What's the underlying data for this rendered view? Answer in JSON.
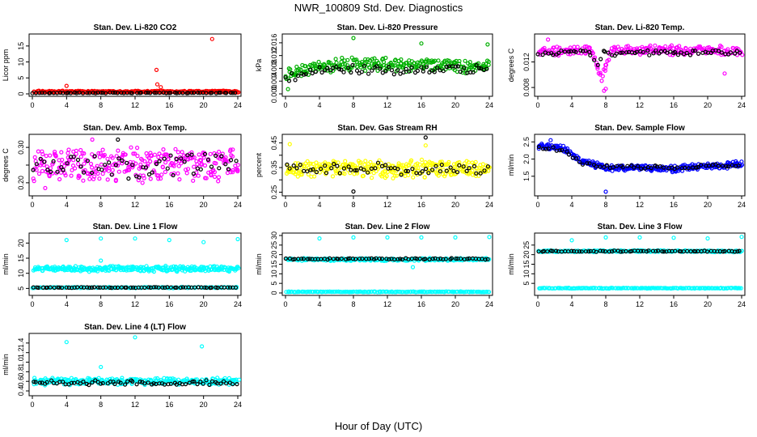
{
  "figure": {
    "title": "NWR_100809  Std. Dev. Diagnostics",
    "xlabel": "Hour of Day (UTC)"
  },
  "chart_data": [
    {
      "type": "scatter",
      "title": "Stan. Dev. Li-820 CO2",
      "ylabel": "Licor ppm",
      "xlim": [
        0,
        24
      ],
      "ylim": [
        0,
        18
      ],
      "xticks": [
        0,
        4,
        8,
        12,
        16,
        20,
        24
      ],
      "yticks": [
        0,
        5,
        10,
        15
      ],
      "ytick_labels": [
        "0",
        "5",
        "10",
        "15"
      ],
      "color": "#ff0000",
      "series": [
        {
          "name": "all",
          "color": "#ff0000",
          "base": 0.7,
          "spread": 0.5,
          "n": 260,
          "outliers": [
            [
              21.0,
              17.2
            ],
            [
              14.5,
              7.5
            ],
            [
              14.6,
              3.0
            ],
            [
              15.0,
              2.1
            ],
            [
              4.0,
              2.5
            ]
          ]
        },
        {
          "name": "hourly",
          "color": "#000000",
          "base": 0.3,
          "spread": 0.2,
          "n": 70
        }
      ]
    },
    {
      "type": "scatter",
      "title": "Stan. Dev. Li-820 Pressure",
      "ylabel": "kPa",
      "xlim": [
        0,
        24
      ],
      "ylim": [
        0,
        0.018
      ],
      "xticks": [
        0,
        4,
        8,
        12,
        16,
        20,
        24
      ],
      "yticks": [
        0.0,
        0.004,
        0.008,
        0.012,
        0.016
      ],
      "ytick_labels": [
        "0.000",
        "0.004",
        "0.008",
        "0.012",
        "0.016"
      ],
      "color": "#00b000",
      "series": [
        {
          "name": "all",
          "color": "#00b000",
          "base": 0.0085,
          "spread": 0.0035,
          "n": 260,
          "trend": [
            [
              0,
              0.0055
            ],
            [
              4,
              0.0085
            ],
            [
              8,
              0.0095
            ],
            [
              24,
              0.0085
            ]
          ],
          "outliers": [
            [
              8.0,
              0.0175
            ],
            [
              23.8,
              0.0155
            ],
            [
              0.3,
              0.0015
            ],
            [
              16.0,
              0.0158
            ]
          ]
        },
        {
          "name": "hourly",
          "color": "#000000",
          "base": 0.0075,
          "spread": 0.0025,
          "n": 70,
          "trend": [
            [
              0,
              0.005
            ],
            [
              4,
              0.0075
            ],
            [
              24,
              0.0078
            ]
          ]
        }
      ]
    },
    {
      "type": "scatter",
      "title": "Stan. Dev. Li-820 Temp.",
      "ylabel": "degrees C",
      "xlim": [
        0,
        24
      ],
      "ylim": [
        0.007,
        0.016
      ],
      "xticks": [
        0,
        4,
        8,
        12,
        16,
        20,
        24
      ],
      "yticks": [
        0.008,
        0.012
      ],
      "ytick_labels": [
        "0.008",
        "0.012"
      ],
      "color": "#ff00ff",
      "series": [
        {
          "name": "all",
          "color": "#ff00ff",
          "base": 0.0138,
          "spread": 0.0012,
          "n": 240,
          "dip": [
            7.5,
            0.0095,
            1.2
          ],
          "outliers": [
            [
              1.2,
              0.0155
            ],
            [
              7.8,
              0.0075
            ],
            [
              8.0,
              0.0078
            ],
            [
              22.0,
              0.0102
            ]
          ]
        },
        {
          "name": "hourly",
          "color": "#000000",
          "base": 0.0135,
          "spread": 0.0008,
          "n": 70,
          "dip": [
            7.0,
            0.011,
            0.8
          ]
        }
      ]
    },
    {
      "type": "scatter",
      "title": "Stan. Dev. Amb. Box Temp.",
      "ylabel": "degrees C",
      "xlim": [
        0,
        24
      ],
      "ylim": [
        0.17,
        0.33
      ],
      "xticks": [
        0,
        4,
        8,
        12,
        16,
        20,
        24
      ],
      "yticks": [
        0.2,
        0.25,
        0.3
      ],
      "ytick_labels": [
        "0.20",
        "",
        "0.30"
      ],
      "color": "#ff00ff",
      "series": [
        {
          "name": "all",
          "color": "#ff00ff",
          "base": 0.25,
          "spread": 0.075,
          "n": 300,
          "outliers": [
            [
              1.5,
              0.185
            ],
            [
              7.0,
              0.322
            ]
          ]
        },
        {
          "name": "hourly",
          "color": "#000000",
          "base": 0.25,
          "spread": 0.06,
          "n": 60,
          "outliers": [
            [
              10.0,
              0.322
            ]
          ]
        }
      ]
    },
    {
      "type": "scatter",
      "title": "Stan. Dev. Gas Stream RH",
      "ylabel": "percent",
      "xlim": [
        0,
        24
      ],
      "ylim": [
        0.245,
        0.475
      ],
      "xticks": [
        0,
        4,
        8,
        12,
        16,
        20,
        24
      ],
      "yticks": [
        0.25,
        0.3,
        0.35,
        0.4,
        0.45
      ],
      "ytick_labels": [
        "0.25",
        "",
        "0.35",
        "",
        "0.45"
      ],
      "color": "#ffff00",
      "series": [
        {
          "name": "all",
          "color": "#ffff00",
          "base": 0.345,
          "spread": 0.06,
          "n": 300,
          "outliers": [
            [
              0.5,
              0.445
            ],
            [
              16.5,
              0.44
            ]
          ]
        },
        {
          "name": "hourly",
          "color": "#000000",
          "base": 0.345,
          "spread": 0.035,
          "n": 60,
          "outliers": [
            [
              16.5,
              0.472
            ],
            [
              8.0,
              0.253
            ]
          ]
        }
      ]
    },
    {
      "type": "scatter",
      "title": "Stan. Dev. Sample Flow",
      "ylabel": "ml/min",
      "xlim": [
        0,
        24
      ],
      "ylim": [
        1.0,
        2.65
      ],
      "xticks": [
        0,
        4,
        8,
        12,
        16,
        20,
        24
      ],
      "yticks": [
        1.5,
        2.0,
        2.5
      ],
      "ytick_labels": [
        "1.5",
        "2.0",
        "2.5"
      ],
      "color": "#0000ff",
      "series": [
        {
          "name": "all",
          "color": "#0000ff",
          "base": 1.8,
          "spread": 0.15,
          "n": 300,
          "trend": [
            [
              0,
              2.4
            ],
            [
              3,
              2.3
            ],
            [
              5,
              1.95
            ],
            [
              8,
              1.75
            ],
            [
              16,
              1.72
            ],
            [
              24,
              1.85
            ]
          ],
          "outliers": [
            [
              8.0,
              1.05
            ],
            [
              1.5,
              2.55
            ]
          ]
        },
        {
          "name": "hourly",
          "color": "#000000",
          "base": 1.8,
          "spread": 0.1,
          "n": 60,
          "trend": [
            [
              0,
              2.35
            ],
            [
              3,
              2.25
            ],
            [
              5,
              1.9
            ],
            [
              8,
              1.78
            ],
            [
              16,
              1.75
            ],
            [
              24,
              1.85
            ]
          ]
        }
      ]
    },
    {
      "type": "scatter",
      "title": "Stan. Dev. Line 1 Flow",
      "ylabel": "ml/min",
      "xlim": [
        0,
        24
      ],
      "ylim": [
        3.5,
        22.5
      ],
      "xticks": [
        0,
        4,
        8,
        12,
        16,
        20,
        24
      ],
      "yticks": [
        5,
        10,
        15,
        20
      ],
      "ytick_labels": [
        "5",
        "10",
        "15",
        "20"
      ],
      "color": "#00ffff",
      "series": [
        {
          "name": "band-high",
          "color": "#00ffff",
          "base": 11.5,
          "spread": 1.5,
          "n": 300,
          "outliers": [
            [
              4.0,
              21.0
            ],
            [
              8.0,
              21.5
            ],
            [
              12.0,
              21.5
            ],
            [
              16.0,
              21.0
            ],
            [
              20.0,
              20.3
            ],
            [
              24.0,
              21.3
            ],
            [
              8.0,
              14.2
            ]
          ]
        },
        {
          "name": "band-low",
          "color": "#00ffff",
          "base": 5.3,
          "spread": 0.3,
          "n": 150
        },
        {
          "name": "hourly-low",
          "color": "#000000",
          "base": 5.3,
          "spread": 0.2,
          "n": 70
        }
      ]
    },
    {
      "type": "scatter",
      "title": "Stan. Dev. Line 2 Flow",
      "ylabel": "ml/min",
      "xlim": [
        0,
        24
      ],
      "ylim": [
        0,
        30
      ],
      "xticks": [
        0,
        4,
        8,
        12,
        16,
        20,
        24
      ],
      "yticks": [
        0,
        5,
        10,
        15,
        20,
        25,
        30
      ],
      "ytick_labels": [
        "0",
        "5",
        "10",
        "15",
        "20",
        "25",
        "30"
      ],
      "color": "#00ffff",
      "series": [
        {
          "name": "band-high",
          "color": "#00ffff",
          "base": 17.5,
          "spread": 1.2,
          "n": 250,
          "outliers": [
            [
              4.0,
              28.5
            ],
            [
              8.0,
              29.0
            ],
            [
              12.0,
              29.0
            ],
            [
              16.0,
              29.0
            ],
            [
              20.0,
              29.0
            ],
            [
              24.0,
              29.2
            ],
            [
              15.0,
              13.5
            ]
          ]
        },
        {
          "name": "hourly-high",
          "color": "#000000",
          "base": 17.8,
          "spread": 0.6,
          "n": 70
        },
        {
          "name": "band-low",
          "color": "#00ffff",
          "base": 0.6,
          "spread": 0.3,
          "n": 180
        }
      ]
    },
    {
      "type": "scatter",
      "title": "Stan. Dev. Line 3 Flow",
      "ylabel": "ml/min",
      "xlim": [
        0,
        24
      ],
      "ylim": [
        0,
        30
      ],
      "xticks": [
        0,
        4,
        8,
        12,
        16,
        20,
        24
      ],
      "yticks": [
        5,
        10,
        15,
        20,
        25
      ],
      "ytick_labels": [
        "5",
        "10",
        "15",
        "20",
        "25"
      ],
      "color": "#00ffff",
      "series": [
        {
          "name": "band-high",
          "color": "#00ffff",
          "base": 21.8,
          "spread": 0.8,
          "n": 250,
          "outliers": [
            [
              4.0,
              27.5
            ],
            [
              8.0,
              29.0
            ],
            [
              12.0,
              29.0
            ],
            [
              16.0,
              28.8
            ],
            [
              20.0,
              28.5
            ],
            [
              24.0,
              29.3
            ]
          ]
        },
        {
          "name": "hourly-high",
          "color": "#000000",
          "base": 21.8,
          "spread": 0.5,
          "n": 70
        },
        {
          "name": "band-low",
          "color": "#00ffff",
          "base": 2.5,
          "spread": 0.3,
          "n": 180
        }
      ]
    },
    {
      "type": "scatter",
      "title": "Stan. Dev. Line 4 (LT) Flow",
      "ylabel": "ml/min",
      "xlim": [
        0,
        24
      ],
      "ylim": [
        0.35,
        1.55
      ],
      "xticks": [
        0,
        4,
        8,
        12,
        16,
        20,
        24
      ],
      "yticks": [
        0.4,
        0.6,
        0.8,
        1.0,
        1.2,
        1.4
      ],
      "ytick_labels": [
        "0.4",
        "0.6",
        "0.8",
        "1.0",
        "1.2",
        "1.4"
      ],
      "color": "#00ffff",
      "series": [
        {
          "name": "all",
          "color": "#00ffff",
          "base": 0.6,
          "spread": 0.12,
          "n": 280,
          "outliers": [
            [
              4.0,
              1.42
            ],
            [
              12.0,
              1.52
            ],
            [
              19.8,
              1.33
            ],
            [
              8.0,
              0.9
            ]
          ]
        },
        {
          "name": "hourly",
          "color": "#000000",
          "base": 0.57,
          "spread": 0.08,
          "n": 70
        }
      ]
    }
  ]
}
